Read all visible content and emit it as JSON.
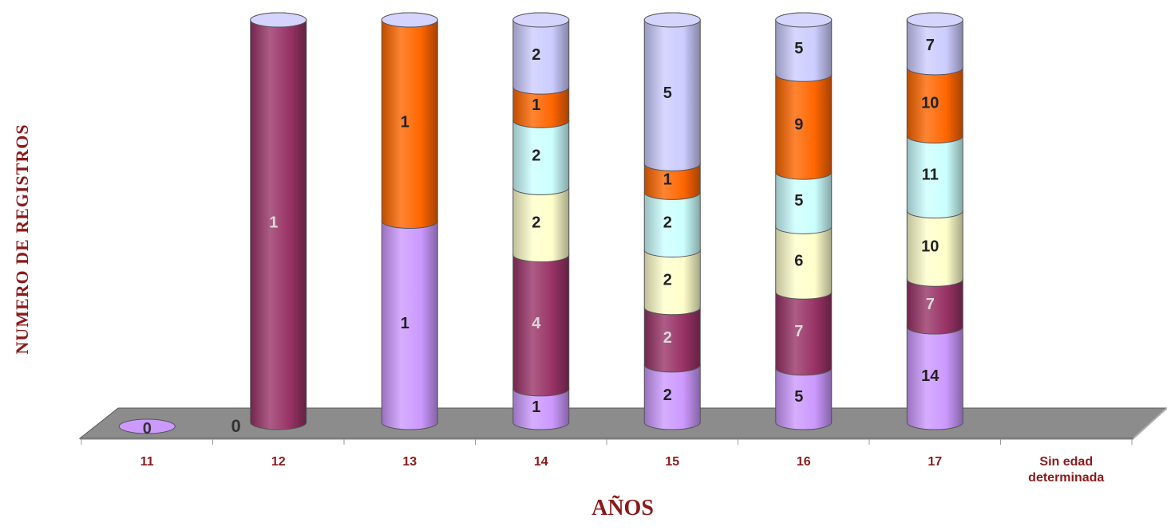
{
  "chart_data": {
    "type": "bar",
    "stacked": true,
    "three_d": "cylinder",
    "xlabel": "AÑOS",
    "ylabel": "NUMERO DE REGISTROS",
    "categories": [
      "11",
      "12",
      "13",
      "14",
      "15",
      "16",
      "17",
      "Sin edad determinada"
    ],
    "series": [
      {
        "values": [
          0,
          0,
          1,
          1,
          2,
          5,
          14,
          null
        ],
        "color": "#cc99ff",
        "label_color": "#222222"
      },
      {
        "values": [
          null,
          1,
          0,
          4,
          2,
          7,
          7,
          null
        ],
        "color": "#993366",
        "label_color": "#d9d9d9"
      },
      {
        "values": [
          null,
          null,
          null,
          2,
          2,
          6,
          10,
          null
        ],
        "color": "#ffffcc",
        "label_color": "#222222"
      },
      {
        "values": [
          null,
          null,
          null,
          2,
          2,
          5,
          11,
          null
        ],
        "color": "#ccffff",
        "label_color": "#222222"
      },
      {
        "values": [
          null,
          null,
          1,
          1,
          1,
          9,
          10,
          null
        ],
        "color": "#ff6600",
        "label_color": "#222222"
      },
      {
        "values": [
          null,
          0,
          0,
          2,
          5,
          5,
          7,
          null
        ],
        "color": "#ccccff",
        "label_color": "#222222"
      }
    ],
    "colors": {
      "axis_text": "#8b1a1a",
      "floor": "#8c8c8c",
      "floor_edge": "#5a5a5a"
    }
  }
}
